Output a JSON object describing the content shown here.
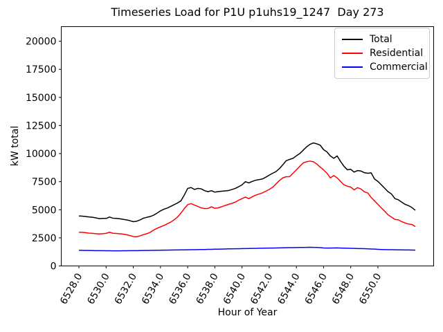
{
  "chart_data": {
    "type": "line",
    "title": "Timeseries Load for P1U p1uhs19_1247  Day 273",
    "xlabel": "Hour of Year",
    "ylabel": "kW total",
    "xlim": [
      6526.7,
      6554.1
    ],
    "ylim": [
      0,
      21300
    ],
    "grid": false,
    "legend_position": "upper right",
    "x_ticks": [
      6528.0,
      6530.0,
      6532.0,
      6534.0,
      6536.0,
      6538.0,
      6540.0,
      6542.0,
      6544.0,
      6546.0,
      6548.0,
      6550.0
    ],
    "x_tick_labels": [
      "6528.0",
      "6530.0",
      "6532.0",
      "6534.0",
      "6536.0",
      "6538.0",
      "6540.0",
      "6542.0",
      "6544.0",
      "6546.0",
      "6548.0",
      "6550.0"
    ],
    "y_ticks": [
      0,
      2500,
      5000,
      7500,
      10000,
      12500,
      15000,
      17500,
      20000
    ],
    "y_tick_labels": [
      "0",
      "2500",
      "5000",
      "7500",
      "10000",
      "12500",
      "15000",
      "17500",
      "20000"
    ],
    "x": [
      6528.0,
      6528.25,
      6528.5,
      6528.75,
      6529.0,
      6529.25,
      6529.5,
      6529.75,
      6530.0,
      6530.25,
      6530.5,
      6530.75,
      6531.0,
      6531.25,
      6531.5,
      6531.75,
      6532.0,
      6532.25,
      6532.5,
      6532.75,
      6533.0,
      6533.25,
      6533.5,
      6533.75,
      6534.0,
      6534.25,
      6534.5,
      6534.75,
      6535.0,
      6535.25,
      6535.5,
      6535.75,
      6536.0,
      6536.25,
      6536.5,
      6536.75,
      6537.0,
      6537.25,
      6537.5,
      6537.75,
      6538.0,
      6538.25,
      6538.5,
      6538.75,
      6539.0,
      6539.25,
      6539.5,
      6539.75,
      6540.0,
      6540.25,
      6540.5,
      6540.75,
      6541.0,
      6541.25,
      6541.5,
      6541.75,
      6542.0,
      6542.25,
      6542.5,
      6542.75,
      6543.0,
      6543.25,
      6543.5,
      6543.75,
      6544.0,
      6544.25,
      6544.5,
      6544.75,
      6545.0,
      6545.25,
      6545.5,
      6545.75,
      6546.0,
      6546.25,
      6546.5,
      6546.75,
      6547.0,
      6547.25,
      6547.5,
      6547.75,
      6548.0,
      6548.25,
      6548.5,
      6548.75,
      6549.0,
      6549.25,
      6549.5,
      6549.75,
      6550.0,
      6550.25,
      6550.5,
      6550.75,
      6551.0,
      6551.25,
      6551.5,
      6551.75,
      6552.0,
      6552.25,
      6552.5,
      6552.75
    ],
    "series": [
      {
        "name": "Total",
        "color": "#000000",
        "values": [
          4450,
          4430,
          4400,
          4360,
          4330,
          4280,
          4210,
          4230,
          4230,
          4350,
          4250,
          4230,
          4200,
          4150,
          4100,
          4030,
          3940,
          3980,
          4100,
          4250,
          4330,
          4400,
          4520,
          4700,
          4900,
          5050,
          5150,
          5300,
          5450,
          5600,
          5790,
          6300,
          6900,
          6980,
          6810,
          6900,
          6860,
          6700,
          6610,
          6700,
          6570,
          6620,
          6650,
          6680,
          6710,
          6800,
          6900,
          7050,
          7220,
          7500,
          7390,
          7520,
          7630,
          7680,
          7740,
          7900,
          8080,
          8250,
          8400,
          8660,
          9000,
          9370,
          9480,
          9580,
          9800,
          10000,
          10300,
          10600,
          10820,
          10950,
          10870,
          10750,
          10350,
          10150,
          9790,
          9580,
          9790,
          9300,
          8870,
          8560,
          8600,
          8350,
          8490,
          8450,
          8300,
          8250,
          8290,
          7740,
          7520,
          7220,
          6910,
          6600,
          6400,
          5990,
          5890,
          5680,
          5480,
          5370,
          5200,
          4950
        ]
      },
      {
        "name": "Residential",
        "color": "#ff0000",
        "values": [
          3000,
          2990,
          2960,
          2920,
          2900,
          2870,
          2850,
          2870,
          2900,
          3000,
          2910,
          2890,
          2860,
          2830,
          2780,
          2700,
          2620,
          2600,
          2680,
          2790,
          2870,
          3000,
          3200,
          3350,
          3480,
          3600,
          3750,
          3900,
          4100,
          4350,
          4700,
          5100,
          5450,
          5550,
          5420,
          5300,
          5170,
          5100,
          5120,
          5270,
          5130,
          5170,
          5270,
          5380,
          5480,
          5570,
          5680,
          5850,
          5990,
          6130,
          5990,
          6150,
          6300,
          6400,
          6500,
          6650,
          6810,
          7000,
          7300,
          7600,
          7840,
          7940,
          7940,
          8250,
          8550,
          8860,
          9170,
          9280,
          9330,
          9270,
          9070,
          8800,
          8550,
          8250,
          7840,
          8040,
          7840,
          7530,
          7220,
          7100,
          7020,
          6770,
          6970,
          6850,
          6600,
          6500,
          6100,
          5790,
          5480,
          5170,
          4860,
          4550,
          4350,
          4140,
          4100,
          3940,
          3830,
          3730,
          3690,
          3500
        ]
      },
      {
        "name": "Commercial",
        "color": "#0000ff",
        "values": [
          1390,
          1385,
          1380,
          1375,
          1370,
          1365,
          1360,
          1360,
          1355,
          1355,
          1350,
          1350,
          1350,
          1355,
          1355,
          1360,
          1360,
          1365,
          1370,
          1375,
          1380,
          1385,
          1390,
          1395,
          1400,
          1405,
          1410,
          1415,
          1420,
          1425,
          1430,
          1435,
          1440,
          1445,
          1450,
          1455,
          1460,
          1465,
          1475,
          1480,
          1490,
          1495,
          1500,
          1510,
          1520,
          1525,
          1530,
          1535,
          1545,
          1550,
          1555,
          1560,
          1565,
          1575,
          1580,
          1585,
          1590,
          1595,
          1600,
          1610,
          1615,
          1620,
          1630,
          1635,
          1640,
          1645,
          1650,
          1655,
          1660,
          1655,
          1645,
          1630,
          1600,
          1590,
          1595,
          1600,
          1605,
          1595,
          1585,
          1575,
          1570,
          1560,
          1550,
          1545,
          1540,
          1525,
          1510,
          1500,
          1480,
          1465,
          1455,
          1450,
          1445,
          1440,
          1435,
          1430,
          1425,
          1420,
          1415,
          1410
        ]
      }
    ]
  }
}
